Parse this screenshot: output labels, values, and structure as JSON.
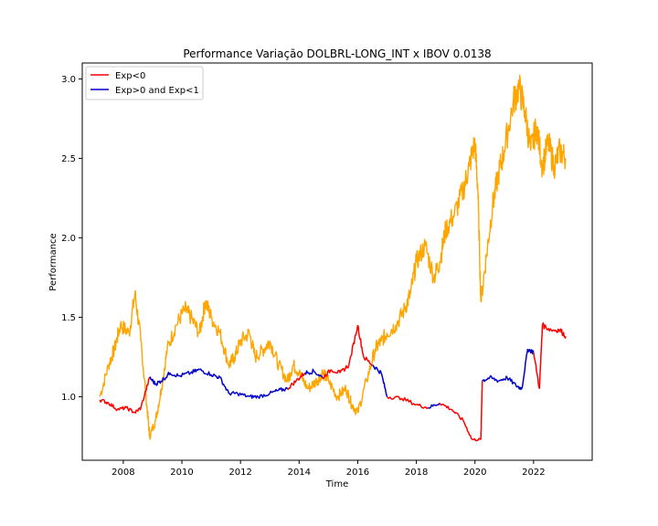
{
  "chart_data": {
    "type": "line",
    "title": "Performance Variação DOLBRL-LONG_INT x IBOV 0.0138",
    "xlabel": "Time",
    "ylabel": "Performance",
    "xlim": [
      2006.6,
      2024.0
    ],
    "ylim": [
      0.6,
      3.1
    ],
    "x_ticks": [
      2008,
      2010,
      2012,
      2014,
      2016,
      2018,
      2020,
      2022
    ],
    "y_ticks": [
      1.0,
      1.5,
      2.0,
      2.5,
      3.0
    ],
    "grid": false,
    "legend": {
      "placement": "top-left",
      "entries": [
        {
          "label": "Exp<0",
          "color": "#ff0000"
        },
        {
          "label": "Exp>0 and Exp<1",
          "color": "#0000cc"
        }
      ]
    },
    "ibov_series": {
      "color": "#ffa500",
      "x": [
        2007.2,
        2007.5,
        2007.7,
        2007.9,
        2008.2,
        2008.4,
        2008.6,
        2008.8,
        2008.9,
        2009.1,
        2009.3,
        2009.5,
        2009.8,
        2010.1,
        2010.3,
        2010.6,
        2010.8,
        2011.0,
        2011.3,
        2011.6,
        2011.8,
        2012.0,
        2012.3,
        2012.5,
        2012.8,
        2013.0,
        2013.3,
        2013.6,
        2013.8,
        2014.0,
        2014.3,
        2014.6,
        2014.8,
        2015.0,
        2015.3,
        2015.6,
        2015.8,
        2016.0,
        2016.3,
        2016.6,
        2016.8,
        2017.0,
        2017.3,
        2017.6,
        2017.8,
        2018.0,
        2018.3,
        2018.6,
        2018.8,
        2019.0,
        2019.3,
        2019.6,
        2019.8,
        2020.0,
        2020.1,
        2020.2,
        2020.4,
        2020.6,
        2020.8,
        2021.0,
        2021.3,
        2021.5,
        2021.7,
        2021.9,
        2022.1,
        2022.3,
        2022.5,
        2022.7,
        2022.9,
        2023.1
      ],
      "values": [
        1.0,
        1.2,
        1.3,
        1.45,
        1.4,
        1.65,
        1.35,
        0.95,
        0.75,
        0.85,
        1.05,
        1.3,
        1.45,
        1.55,
        1.5,
        1.4,
        1.6,
        1.5,
        1.4,
        1.2,
        1.25,
        1.35,
        1.4,
        1.25,
        1.3,
        1.35,
        1.2,
        1.1,
        1.2,
        1.15,
        1.05,
        1.1,
        1.15,
        1.1,
        1.0,
        1.05,
        0.95,
        0.9,
        1.1,
        1.3,
        1.35,
        1.4,
        1.45,
        1.55,
        1.65,
        1.85,
        1.95,
        1.75,
        1.85,
        2.05,
        2.15,
        2.3,
        2.45,
        2.6,
        2.3,
        1.6,
        1.9,
        2.2,
        2.4,
        2.55,
        2.85,
        2.95,
        2.8,
        2.55,
        2.7,
        2.45,
        2.6,
        2.45,
        2.55,
        2.5
      ]
    },
    "strategy_series": {
      "x": [
        2007.2,
        2007.5,
        2007.8,
        2008.1,
        2008.4,
        2008.6,
        2008.9,
        2009.1,
        2009.3,
        2009.6,
        2009.9,
        2010.3,
        2010.6,
        2011.0,
        2011.3,
        2011.6,
        2011.9,
        2012.3,
        2012.6,
        2013.0,
        2013.3,
        2013.6,
        2013.9,
        2014.2,
        2014.5,
        2014.8,
        2015.1,
        2015.4,
        2015.7,
        2016.0,
        2016.2,
        2016.5,
        2016.8,
        2017.0,
        2017.5,
        2018.0,
        2018.4,
        2018.8,
        2019.2,
        2019.6,
        2019.9,
        2020.2,
        2020.25,
        2020.5,
        2020.8,
        2021.1,
        2021.4,
        2021.6,
        2021.8,
        2022.0,
        2022.2,
        2022.3,
        2022.6,
        2022.9,
        2023.1
      ],
      "values": [
        0.98,
        0.96,
        0.92,
        0.93,
        0.9,
        0.93,
        1.12,
        1.08,
        1.1,
        1.15,
        1.13,
        1.15,
        1.17,
        1.14,
        1.12,
        1.02,
        1.02,
        1.0,
        1.0,
        1.02,
        1.04,
        1.05,
        1.1,
        1.15,
        1.16,
        1.12,
        1.17,
        1.15,
        1.2,
        1.45,
        1.25,
        1.2,
        1.15,
        1.0,
        0.99,
        0.95,
        0.93,
        0.96,
        0.92,
        0.85,
        0.73,
        0.73,
        1.1,
        1.12,
        1.1,
        1.12,
        1.07,
        1.05,
        1.3,
        1.28,
        1.05,
        1.45,
        1.42,
        1.42,
        1.38
      ],
      "regimes": [
        "neg",
        "neg",
        "neg",
        "neg",
        "neg",
        "neg",
        "pos",
        "pos",
        "pos",
        "pos",
        "pos",
        "pos",
        "pos",
        "pos",
        "pos",
        "pos",
        "pos",
        "pos",
        "pos",
        "pos",
        "pos",
        "neg",
        "neg",
        "pos",
        "pos",
        "neg",
        "neg",
        "neg",
        "neg",
        "neg",
        "neg",
        "pos",
        "pos",
        "neg",
        "neg",
        "neg",
        "pos",
        "neg",
        "neg",
        "neg",
        "neg",
        "neg",
        "pos",
        "pos",
        "pos",
        "pos",
        "pos",
        "pos",
        "pos",
        "neg",
        "neg",
        "neg",
        "neg",
        "neg",
        "neg"
      ]
    }
  }
}
